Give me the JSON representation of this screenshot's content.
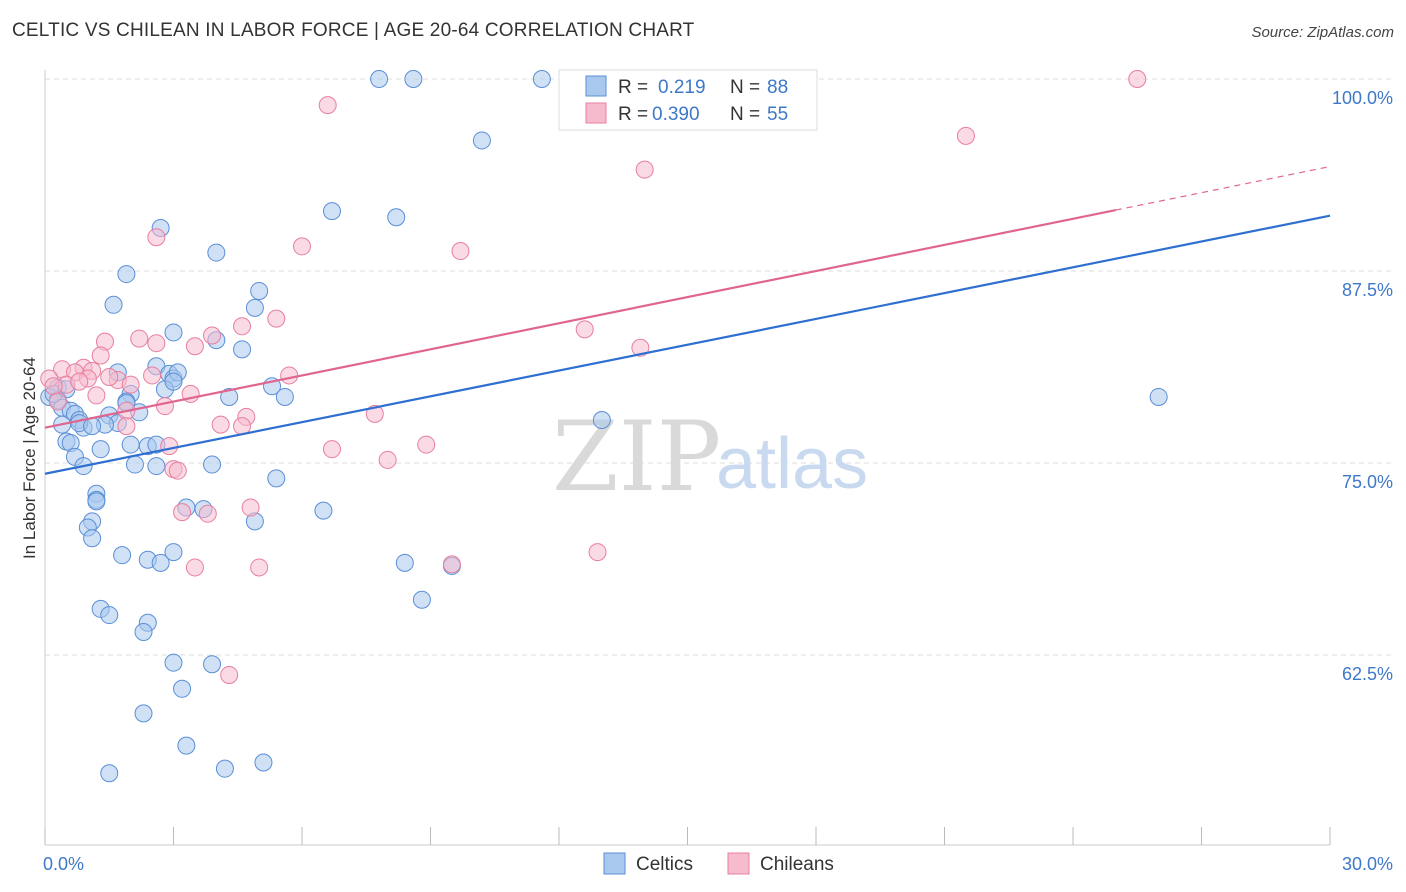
{
  "title": "CELTIC VS CHILEAN IN LABOR FORCE | AGE 20-64 CORRELATION CHART",
  "source": "Source: ZipAtlas.com",
  "colors": {
    "blue_fill": "#a9c8ee",
    "blue_stroke": "#5a8fd6",
    "blue_line": "#2f6fd0",
    "pink_fill": "#f6bccd",
    "pink_stroke": "#e87f9f",
    "pink_line": "#e0668f",
    "tick_text": "#3d78c9",
    "grid": "#dddddd"
  },
  "legend": {
    "r_label": "R =",
    "n_label": "N =",
    "rows": [
      {
        "series": "Celtics",
        "r": "0.219",
        "n": "88"
      },
      {
        "series": "Chileans",
        "r": "0.390",
        "n": "55"
      }
    ]
  },
  "watermark": {
    "zip": "ZIP",
    "atlas": "atlas"
  },
  "chart_data": {
    "type": "scatter",
    "title": "CELTIC VS CHILEAN IN LABOR FORCE | AGE 20-64 CORRELATION CHART",
    "xlabel": "",
    "ylabel": "In Labor Force | Age 20-64",
    "xlim": [
      0,
      30
    ],
    "ylim": [
      50,
      101
    ],
    "x_tick_labels": [
      {
        "value": 0,
        "label": "0.0%"
      },
      {
        "value": 30,
        "label": "30.0%"
      }
    ],
    "y_tick_labels": [
      {
        "value": 100,
        "label": "100.0%"
      },
      {
        "value": 87.5,
        "label": "87.5%"
      },
      {
        "value": 75,
        "label": "75.0%"
      },
      {
        "value": 62.5,
        "label": "62.5%"
      }
    ],
    "x_minor_ticks": [
      0,
      3,
      6,
      9,
      12,
      15,
      18,
      21,
      24,
      27,
      30
    ],
    "grid": true,
    "legend_position": "top-center",
    "series": [
      {
        "name": "Celtics",
        "color": "blue",
        "trend": {
          "x": [
            0,
            30
          ],
          "y": [
            74.3,
            91.1
          ],
          "dashed_from": null
        },
        "points": [
          [
            7.8,
            100.0
          ],
          [
            8.6,
            100.0
          ],
          [
            11.6,
            100.0
          ],
          [
            10.2,
            96.0
          ],
          [
            6.7,
            91.4
          ],
          [
            8.2,
            91.0
          ],
          [
            2.7,
            90.3
          ],
          [
            4.0,
            88.7
          ],
          [
            1.9,
            87.3
          ],
          [
            5.0,
            86.2
          ],
          [
            1.6,
            85.3
          ],
          [
            4.9,
            85.1
          ],
          [
            3.0,
            83.5
          ],
          [
            4.0,
            83.0
          ],
          [
            4.6,
            82.4
          ],
          [
            2.6,
            81.3
          ],
          [
            1.7,
            80.9
          ],
          [
            2.9,
            80.8
          ],
          [
            3.0,
            80.5
          ],
          [
            0.3,
            79.9
          ],
          [
            5.3,
            80.0
          ],
          [
            2.8,
            79.8
          ],
          [
            2.0,
            79.5
          ],
          [
            5.6,
            79.3
          ],
          [
            0.1,
            79.3
          ],
          [
            4.3,
            79.3
          ],
          [
            0.3,
            79.1
          ],
          [
            1.9,
            79.0
          ],
          [
            0.4,
            78.6
          ],
          [
            0.6,
            78.4
          ],
          [
            1.5,
            78.1
          ],
          [
            0.7,
            78.2
          ],
          [
            0.8,
            77.8
          ],
          [
            1.7,
            77.6
          ],
          [
            0.4,
            77.5
          ],
          [
            1.4,
            77.5
          ],
          [
            0.9,
            77.3
          ],
          [
            13.0,
            77.8
          ],
          [
            26.0,
            79.3
          ],
          [
            0.5,
            76.4
          ],
          [
            0.6,
            76.3
          ],
          [
            2.0,
            76.2
          ],
          [
            2.4,
            76.1
          ],
          [
            1.3,
            75.9
          ],
          [
            0.7,
            75.4
          ],
          [
            0.9,
            74.8
          ],
          [
            2.1,
            74.9
          ],
          [
            2.6,
            74.8
          ],
          [
            3.9,
            74.9
          ],
          [
            5.4,
            74.0
          ],
          [
            1.2,
            73.0
          ],
          [
            1.2,
            72.6
          ],
          [
            1.2,
            72.5
          ],
          [
            3.3,
            72.1
          ],
          [
            3.7,
            72.0
          ],
          [
            6.5,
            71.9
          ],
          [
            4.9,
            71.2
          ],
          [
            1.1,
            71.2
          ],
          [
            1.0,
            70.8
          ],
          [
            1.1,
            70.1
          ],
          [
            1.8,
            69.0
          ],
          [
            2.4,
            68.7
          ],
          [
            2.7,
            68.5
          ],
          [
            3.0,
            69.2
          ],
          [
            8.4,
            68.5
          ],
          [
            9.5,
            68.3
          ],
          [
            8.8,
            66.1
          ],
          [
            1.3,
            65.5
          ],
          [
            1.5,
            65.1
          ],
          [
            2.4,
            64.6
          ],
          [
            2.3,
            64.0
          ],
          [
            3.0,
            62.0
          ],
          [
            3.9,
            61.9
          ],
          [
            3.2,
            60.3
          ],
          [
            2.3,
            58.7
          ],
          [
            3.3,
            56.6
          ],
          [
            5.1,
            55.5
          ],
          [
            4.2,
            55.1
          ],
          [
            1.5,
            54.8
          ],
          [
            0.2,
            79.5
          ],
          [
            0.5,
            79.8
          ],
          [
            3.1,
            80.9
          ],
          [
            2.2,
            78.3
          ],
          [
            0.8,
            77.6
          ],
          [
            1.1,
            77.4
          ],
          [
            2.6,
            76.2
          ],
          [
            3.0,
            80.3
          ],
          [
            1.9,
            78.9
          ]
        ]
      },
      {
        "name": "Chileans",
        "color": "pink",
        "trend": {
          "x": [
            0,
            30
          ],
          "y": [
            77.3,
            94.3
          ],
          "dashed_from": 25.0
        },
        "points": [
          [
            25.5,
            100.0
          ],
          [
            6.6,
            98.3
          ],
          [
            21.5,
            96.3
          ],
          [
            14.0,
            94.1
          ],
          [
            2.6,
            89.7
          ],
          [
            6.0,
            89.1
          ],
          [
            9.7,
            88.8
          ],
          [
            5.4,
            84.4
          ],
          [
            12.6,
            83.7
          ],
          [
            4.6,
            83.9
          ],
          [
            3.9,
            83.3
          ],
          [
            2.2,
            83.1
          ],
          [
            1.4,
            82.9
          ],
          [
            2.6,
            82.8
          ],
          [
            13.9,
            82.5
          ],
          [
            1.3,
            82.0
          ],
          [
            0.4,
            81.1
          ],
          [
            0.9,
            81.2
          ],
          [
            1.1,
            81.0
          ],
          [
            0.7,
            80.9
          ],
          [
            5.7,
            80.7
          ],
          [
            0.1,
            80.5
          ],
          [
            1.0,
            80.5
          ],
          [
            1.7,
            80.4
          ],
          [
            0.5,
            80.1
          ],
          [
            0.2,
            80.0
          ],
          [
            2.5,
            80.7
          ],
          [
            3.4,
            79.5
          ],
          [
            1.2,
            79.4
          ],
          [
            0.3,
            79.0
          ],
          [
            2.8,
            78.7
          ],
          [
            1.9,
            78.4
          ],
          [
            7.7,
            78.2
          ],
          [
            4.7,
            78.0
          ],
          [
            4.1,
            77.5
          ],
          [
            4.6,
            77.4
          ],
          [
            1.9,
            77.4
          ],
          [
            2.9,
            76.1
          ],
          [
            8.9,
            76.2
          ],
          [
            6.7,
            75.9
          ],
          [
            8.0,
            75.2
          ],
          [
            3.0,
            74.6
          ],
          [
            3.1,
            74.5
          ],
          [
            4.8,
            72.1
          ],
          [
            3.2,
            71.8
          ],
          [
            3.8,
            71.7
          ],
          [
            12.9,
            69.2
          ],
          [
            9.5,
            68.4
          ],
          [
            3.5,
            68.2
          ],
          [
            5.0,
            68.2
          ],
          [
            4.3,
            61.2
          ],
          [
            2.0,
            80.1
          ],
          [
            0.8,
            80.3
          ],
          [
            1.5,
            80.6
          ],
          [
            3.5,
            82.6
          ]
        ]
      }
    ]
  }
}
